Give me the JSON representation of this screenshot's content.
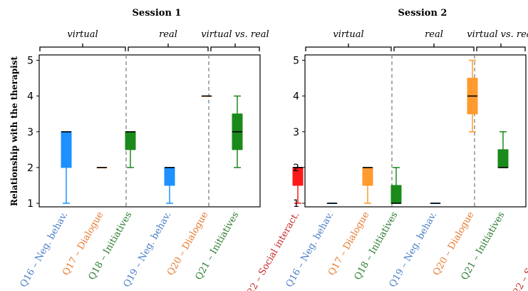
{
  "chart_data": {
    "type": "box",
    "ylabel": "Relationship with the therapist",
    "ylim": [
      0.9,
      5.15
    ],
    "yticks": [
      "1",
      "2",
      "3",
      "4",
      "5"
    ],
    "panels": [
      {
        "title": "Session 1",
        "groups": [
          {
            "label": "virtual",
            "items": [
              0,
              1,
              2
            ]
          },
          {
            "label": "real",
            "items": [
              3,
              4,
              5
            ]
          },
          {
            "label": "virtual vs. real",
            "items": [
              6
            ]
          }
        ],
        "boxes": [
          {
            "category": "Q16 – Neg. behav.",
            "color": "#1e90ff",
            "labelColor": "#4a7ec7",
            "min": 1,
            "q1": 2,
            "median": 3,
            "q3": 3,
            "max": 3
          },
          {
            "category": "Q17 – Dialogue",
            "color": "#ff7f0e",
            "labelColor": "#e8792d",
            "min": 2,
            "q1": 2,
            "median": 2,
            "q3": 2,
            "max": 2
          },
          {
            "category": "Q18 – Initiatives",
            "color": "#1a8a1a",
            "labelColor": "#2e7d32",
            "min": 2,
            "q1": 2.5,
            "median": 3,
            "q3": 3,
            "max": 3
          },
          {
            "category": "Q19 – Neg. behav.",
            "color": "#1e90ff",
            "labelColor": "#4a7ec7",
            "min": 1,
            "q1": 1.5,
            "median": 2,
            "q3": 2,
            "max": 2
          },
          {
            "category": "Q20 – Dialogue",
            "color": "#ff7f0e",
            "labelColor": "#e8792d",
            "min": 4,
            "q1": 4,
            "median": 4,
            "q3": 4,
            "max": 4
          },
          {
            "category": "Q21 – Initiatives",
            "color": "#1a8a1a",
            "labelColor": "#2e7d32",
            "min": 2,
            "q1": 2.5,
            "median": 3,
            "q3": 3.5,
            "max": 4
          },
          {
            "category": "Q22 – Social interact.",
            "color": "#ff1a1a",
            "labelColor": "#c62828",
            "min": 1,
            "q1": 1.5,
            "median": 2,
            "q3": 2,
            "max": 2
          }
        ]
      },
      {
        "title": "Session 2",
        "groups": [
          {
            "label": "virtual",
            "items": [
              0,
              1,
              2
            ]
          },
          {
            "label": "real",
            "items": [
              3,
              4,
              5
            ]
          },
          {
            "label": "virtual vs. real",
            "items": [
              6
            ]
          }
        ],
        "boxes": [
          {
            "category": "Q16 – Neg. behav.",
            "color": "#1e90ff",
            "labelColor": "#4a7ec7",
            "min": 1,
            "q1": 1,
            "median": 1,
            "q3": 1,
            "max": 1
          },
          {
            "category": "Q17 – Dialogue",
            "color": "#ff9a2e",
            "labelColor": "#e8792d",
            "min": 1,
            "q1": 1.5,
            "median": 2,
            "q3": 2,
            "max": 2
          },
          {
            "category": "Q18 – Initiatives",
            "color": "#1a8a1a",
            "labelColor": "#2e7d32",
            "min": 1,
            "q1": 1,
            "median": 1,
            "q3": 1.5,
            "max": 2
          },
          {
            "category": "Q19 – Neg. behav.",
            "color": "#1e90ff",
            "labelColor": "#4a7ec7",
            "min": 1,
            "q1": 1,
            "median": 1,
            "q3": 1,
            "max": 1
          },
          {
            "category": "Q20 – Dialogue",
            "color": "#ff9a2e",
            "labelColor": "#e8792d",
            "min": 3,
            "q1": 3.5,
            "median": 4,
            "q3": 4.5,
            "max": 5
          },
          {
            "category": "Q21 – Initiatives",
            "color": "#1a8a1a",
            "labelColor": "#2e7d32",
            "min": 2,
            "q1": 2,
            "median": 2,
            "q3": 2.5,
            "max": 3
          },
          {
            "category": "Q22 – Social interact.",
            "color": "#ff1a1a",
            "labelColor": "#c62828",
            "min": 1,
            "q1": 1.5,
            "median": 2,
            "q3": 2,
            "max": 2
          }
        ]
      }
    ]
  }
}
